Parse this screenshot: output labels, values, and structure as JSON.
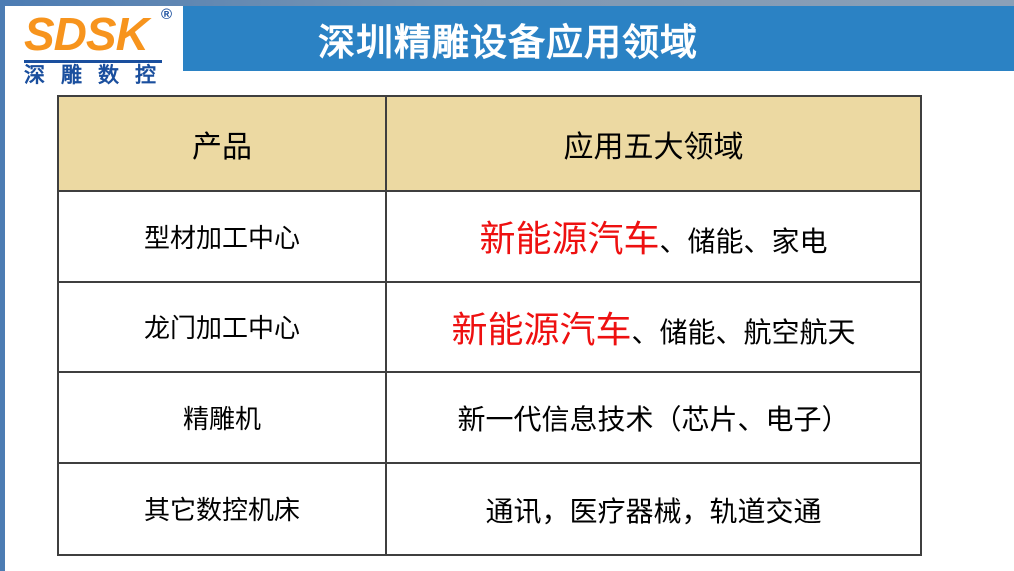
{
  "logo": {
    "brand": "SDSK",
    "registered_mark": "®",
    "subtitle": "深雕数控"
  },
  "banner": {
    "title": "深圳精雕设备应用领域"
  },
  "table": {
    "headers": {
      "product": "产品",
      "applications": "应用五大领域"
    },
    "rows": [
      {
        "product": "型材加工中心",
        "highlight": "新能源汽车",
        "rest": "、储能、家电"
      },
      {
        "product": "龙门加工中心",
        "highlight": "新能源汽车",
        "rest": "、储能、航空航天"
      },
      {
        "product": "精雕机",
        "highlight": "",
        "rest": "新一代信息技术（芯片、电子）"
      },
      {
        "product": "其它数控机床",
        "highlight": "",
        "rest": "通讯，医疗器械，轨道交通"
      }
    ]
  },
  "colors": {
    "banner_blue": "#2b82c4",
    "header_tan": "#ecd9a2",
    "highlight_red": "#ee1010",
    "logo_orange": "#f7941d",
    "logo_blue": "#1a4f9e",
    "edge_blue": "#4c7cb3",
    "table_border": "#3f3f3f"
  }
}
